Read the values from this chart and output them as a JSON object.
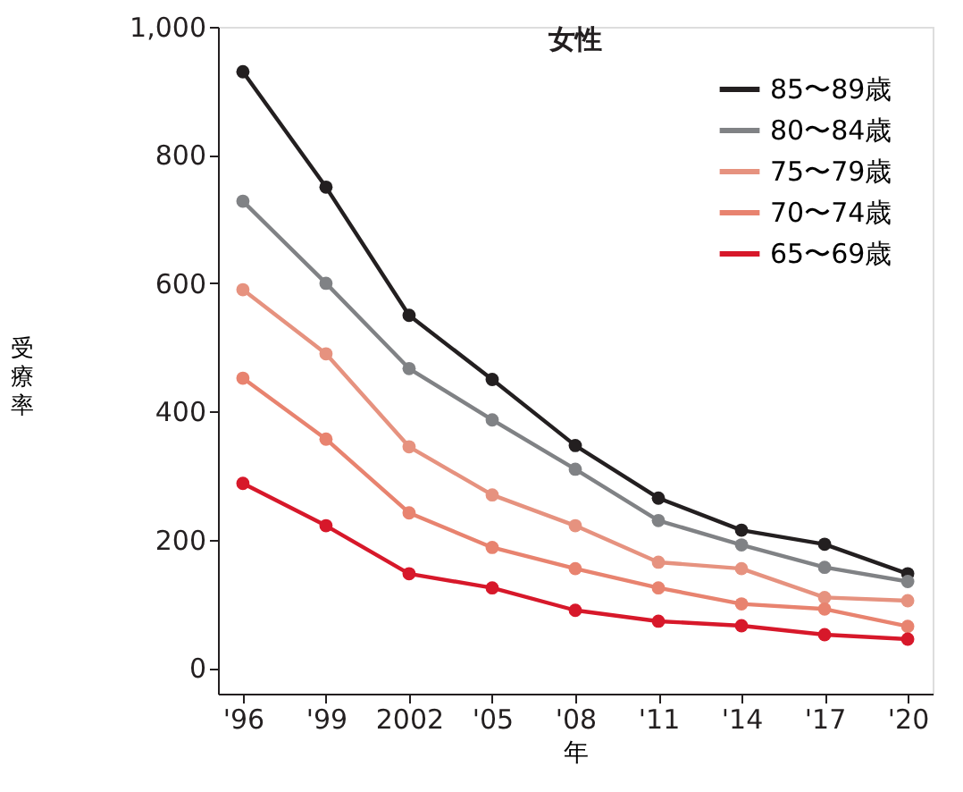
{
  "chart_data": {
    "type": "line",
    "title": "女性",
    "xlabel": "年",
    "ylabel": "受療率",
    "categories": [
      "'96",
      "'99",
      "2002",
      "'05",
      "'08",
      "'11",
      "'14",
      "'17",
      "'20"
    ],
    "series": [
      {
        "name": "85〜89歳",
        "color": "#231f20",
        "values": [
          930,
          750,
          550,
          450,
          347,
          265,
          215,
          193,
          147
        ]
      },
      {
        "name": "80〜84歳",
        "color": "#808285",
        "values": [
          728,
          600,
          467,
          387,
          310,
          230,
          192,
          157,
          135
        ]
      },
      {
        "name": "75〜79歳",
        "color": "#e6927f",
        "values": [
          590,
          490,
          345,
          270,
          222,
          165,
          155,
          110,
          105
        ]
      },
      {
        "name": "70〜74歳",
        "color": "#e8836f",
        "values": [
          452,
          357,
          242,
          188,
          155,
          125,
          100,
          92,
          65
        ]
      },
      {
        "name": "65〜69歳",
        "color": "#d7182a",
        "values": [
          288,
          222,
          147,
          125,
          90,
          73,
          66,
          52,
          45
        ]
      }
    ],
    "ylim": [
      -40,
      1000
    ],
    "yticks": [
      {
        "value": 0,
        "label": "0"
      },
      {
        "value": 200,
        "label": "200"
      },
      {
        "value": 400,
        "label": "400"
      },
      {
        "value": 600,
        "label": "600"
      },
      {
        "value": 800,
        "label": "800"
      },
      {
        "value": 1000,
        "label": "1,000"
      }
    ],
    "grid": false,
    "legend": "top right",
    "marker": "circle",
    "line_style": "solid"
  }
}
